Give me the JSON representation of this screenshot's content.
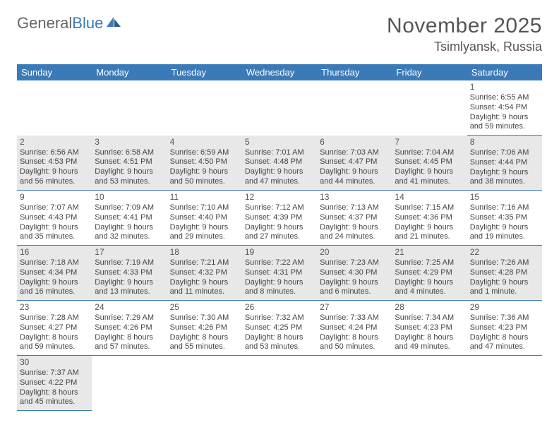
{
  "logo": {
    "text1": "General",
    "text2": "Blue"
  },
  "title": "November 2025",
  "location": "Tsimlyansk, Russia",
  "colors": {
    "header_bg": "#3a7ab8",
    "header_text": "#ffffff",
    "odd_row_bg": "#e8e8e8",
    "text": "#444444",
    "border": "#3a7ab8"
  },
  "weekdays": [
    "Sunday",
    "Monday",
    "Tuesday",
    "Wednesday",
    "Thursday",
    "Friday",
    "Saturday"
  ],
  "weeks": [
    [
      null,
      null,
      null,
      null,
      null,
      null,
      {
        "n": "1",
        "sr": "Sunrise: 6:55 AM",
        "ss": "Sunset: 4:54 PM",
        "dl": "Daylight: 9 hours and 59 minutes."
      }
    ],
    [
      {
        "n": "2",
        "sr": "Sunrise: 6:56 AM",
        "ss": "Sunset: 4:53 PM",
        "dl": "Daylight: 9 hours and 56 minutes."
      },
      {
        "n": "3",
        "sr": "Sunrise: 6:58 AM",
        "ss": "Sunset: 4:51 PM",
        "dl": "Daylight: 9 hours and 53 minutes."
      },
      {
        "n": "4",
        "sr": "Sunrise: 6:59 AM",
        "ss": "Sunset: 4:50 PM",
        "dl": "Daylight: 9 hours and 50 minutes."
      },
      {
        "n": "5",
        "sr": "Sunrise: 7:01 AM",
        "ss": "Sunset: 4:48 PM",
        "dl": "Daylight: 9 hours and 47 minutes."
      },
      {
        "n": "6",
        "sr": "Sunrise: 7:03 AM",
        "ss": "Sunset: 4:47 PM",
        "dl": "Daylight: 9 hours and 44 minutes."
      },
      {
        "n": "7",
        "sr": "Sunrise: 7:04 AM",
        "ss": "Sunset: 4:45 PM",
        "dl": "Daylight: 9 hours and 41 minutes."
      },
      {
        "n": "8",
        "sr": "Sunrise: 7:06 AM",
        "ss": "Sunset: 4:44 PM",
        "dl": "Daylight: 9 hours and 38 minutes."
      }
    ],
    [
      {
        "n": "9",
        "sr": "Sunrise: 7:07 AM",
        "ss": "Sunset: 4:43 PM",
        "dl": "Daylight: 9 hours and 35 minutes."
      },
      {
        "n": "10",
        "sr": "Sunrise: 7:09 AM",
        "ss": "Sunset: 4:41 PM",
        "dl": "Daylight: 9 hours and 32 minutes."
      },
      {
        "n": "11",
        "sr": "Sunrise: 7:10 AM",
        "ss": "Sunset: 4:40 PM",
        "dl": "Daylight: 9 hours and 29 minutes."
      },
      {
        "n": "12",
        "sr": "Sunrise: 7:12 AM",
        "ss": "Sunset: 4:39 PM",
        "dl": "Daylight: 9 hours and 27 minutes."
      },
      {
        "n": "13",
        "sr": "Sunrise: 7:13 AM",
        "ss": "Sunset: 4:37 PM",
        "dl": "Daylight: 9 hours and 24 minutes."
      },
      {
        "n": "14",
        "sr": "Sunrise: 7:15 AM",
        "ss": "Sunset: 4:36 PM",
        "dl": "Daylight: 9 hours and 21 minutes."
      },
      {
        "n": "15",
        "sr": "Sunrise: 7:16 AM",
        "ss": "Sunset: 4:35 PM",
        "dl": "Daylight: 9 hours and 19 minutes."
      }
    ],
    [
      {
        "n": "16",
        "sr": "Sunrise: 7:18 AM",
        "ss": "Sunset: 4:34 PM",
        "dl": "Daylight: 9 hours and 16 minutes."
      },
      {
        "n": "17",
        "sr": "Sunrise: 7:19 AM",
        "ss": "Sunset: 4:33 PM",
        "dl": "Daylight: 9 hours and 13 minutes."
      },
      {
        "n": "18",
        "sr": "Sunrise: 7:21 AM",
        "ss": "Sunset: 4:32 PM",
        "dl": "Daylight: 9 hours and 11 minutes."
      },
      {
        "n": "19",
        "sr": "Sunrise: 7:22 AM",
        "ss": "Sunset: 4:31 PM",
        "dl": "Daylight: 9 hours and 8 minutes."
      },
      {
        "n": "20",
        "sr": "Sunrise: 7:23 AM",
        "ss": "Sunset: 4:30 PM",
        "dl": "Daylight: 9 hours and 6 minutes."
      },
      {
        "n": "21",
        "sr": "Sunrise: 7:25 AM",
        "ss": "Sunset: 4:29 PM",
        "dl": "Daylight: 9 hours and 4 minutes."
      },
      {
        "n": "22",
        "sr": "Sunrise: 7:26 AM",
        "ss": "Sunset: 4:28 PM",
        "dl": "Daylight: 9 hours and 1 minute."
      }
    ],
    [
      {
        "n": "23",
        "sr": "Sunrise: 7:28 AM",
        "ss": "Sunset: 4:27 PM",
        "dl": "Daylight: 8 hours and 59 minutes."
      },
      {
        "n": "24",
        "sr": "Sunrise: 7:29 AM",
        "ss": "Sunset: 4:26 PM",
        "dl": "Daylight: 8 hours and 57 minutes."
      },
      {
        "n": "25",
        "sr": "Sunrise: 7:30 AM",
        "ss": "Sunset: 4:26 PM",
        "dl": "Daylight: 8 hours and 55 minutes."
      },
      {
        "n": "26",
        "sr": "Sunrise: 7:32 AM",
        "ss": "Sunset: 4:25 PM",
        "dl": "Daylight: 8 hours and 53 minutes."
      },
      {
        "n": "27",
        "sr": "Sunrise: 7:33 AM",
        "ss": "Sunset: 4:24 PM",
        "dl": "Daylight: 8 hours and 50 minutes."
      },
      {
        "n": "28",
        "sr": "Sunrise: 7:34 AM",
        "ss": "Sunset: 4:23 PM",
        "dl": "Daylight: 8 hours and 49 minutes."
      },
      {
        "n": "29",
        "sr": "Sunrise: 7:36 AM",
        "ss": "Sunset: 4:23 PM",
        "dl": "Daylight: 8 hours and 47 minutes."
      }
    ],
    [
      {
        "n": "30",
        "sr": "Sunrise: 7:37 AM",
        "ss": "Sunset: 4:22 PM",
        "dl": "Daylight: 8 hours and 45 minutes."
      },
      null,
      null,
      null,
      null,
      null,
      null
    ]
  ]
}
